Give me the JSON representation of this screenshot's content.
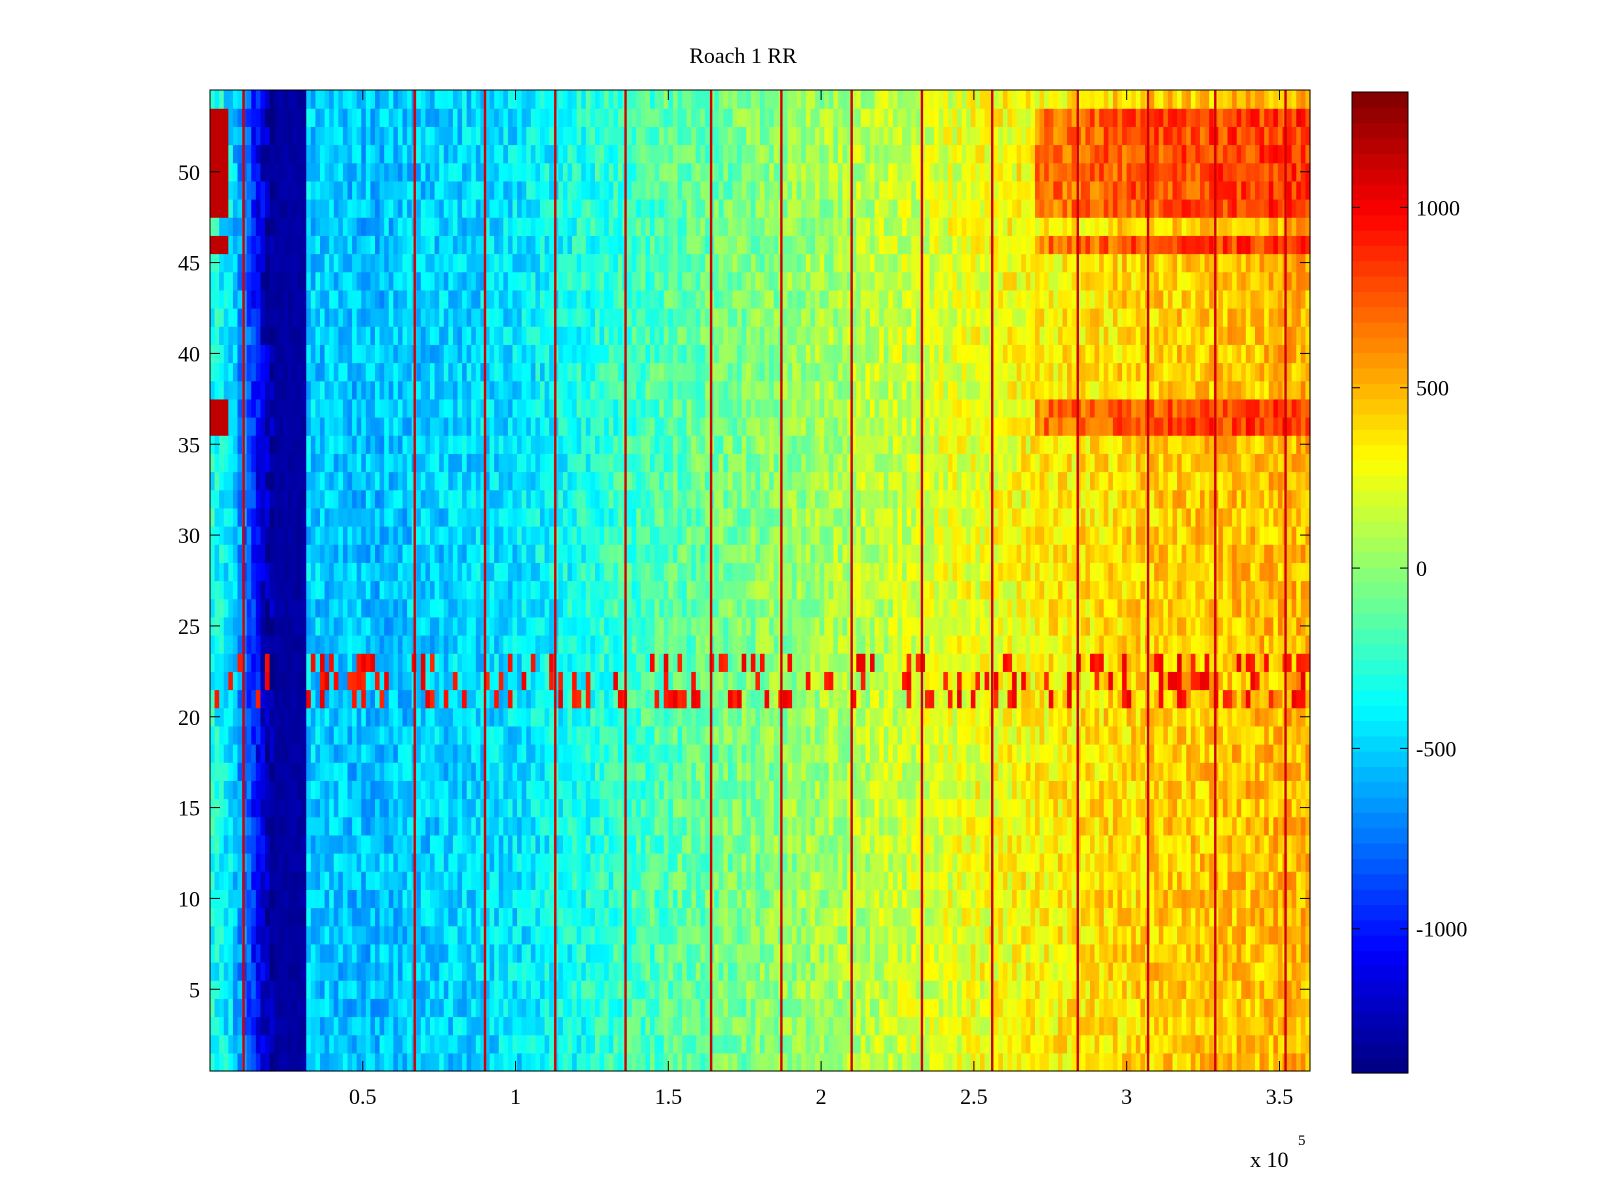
{
  "chart_data": {
    "type": "heatmap",
    "title": "Roach 1 RR",
    "xlabel": "",
    "ylabel": "",
    "x_exponent_label": "x 10",
    "x_exponent_power": "5",
    "xlim": [
      0,
      360000
    ],
    "ylim": [
      0.5,
      54.5
    ],
    "xticks": [
      50000,
      100000,
      150000,
      200000,
      250000,
      300000,
      350000
    ],
    "xtick_labels": [
      "0.5",
      "1",
      "1.5",
      "2",
      "2.5",
      "3",
      "3.5"
    ],
    "yticks": [
      5,
      10,
      15,
      20,
      25,
      30,
      35,
      40,
      45,
      50
    ],
    "ytick_labels": [
      "5",
      "10",
      "15",
      "20",
      "25",
      "30",
      "35",
      "40",
      "45",
      "50"
    ],
    "rows": 54,
    "colormap": "jet",
    "colorbar": {
      "clim": [
        -1400,
        1320
      ],
      "ticks": [
        1000,
        500,
        0,
        -500,
        -1000
      ],
      "tick_labels": [
        "1000",
        "500",
        "0",
        "-500",
        "-1000"
      ]
    },
    "value_profile": {
      "x": [
        0,
        7000,
        20000,
        32000,
        50000,
        100000,
        150000,
        200000,
        250000,
        300000,
        360000
      ],
      "mean": [
        -300,
        -450,
        -1350,
        -500,
        -550,
        -450,
        -150,
        50,
        250,
        400,
        500
      ]
    },
    "low_band": {
      "x_range": [
        21000,
        31000
      ],
      "value": -1350
    },
    "high_rows": [
      36,
      37,
      46,
      48,
      49,
      50,
      51,
      52,
      53
    ],
    "high_rows_level": 850,
    "stripe_rows": [
      21,
      22,
      23
    ],
    "vertical_lines_x": [
      11000,
      67000,
      90000,
      113000,
      136000,
      164000,
      187000,
      210000,
      233000,
      256000,
      284000,
      307000,
      329000,
      352000
    ],
    "vertical_lines_level": 1100
  }
}
